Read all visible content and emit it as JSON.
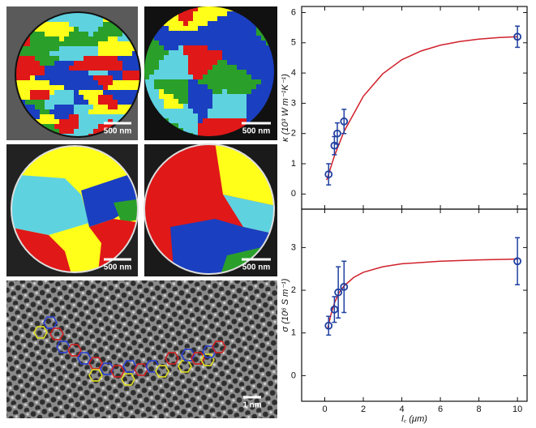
{
  "panels": [
    {
      "scale_bar": "500 nm"
    },
    {
      "scale_bar": "500 nm"
    },
    {
      "scale_bar": "500 nm"
    },
    {
      "scale_bar": "500 nm"
    },
    {
      "scale_bar": "1 nm"
    }
  ],
  "chart_data": [
    {
      "type": "scatter",
      "ylabel": "κ (10³ W m⁻¹K⁻¹)",
      "xlim": [
        -1.2,
        10.5
      ],
      "xticks": [
        0,
        2,
        4,
        6,
        8,
        10
      ],
      "ylim": [
        -0.5,
        6.2
      ],
      "yticks": [
        0,
        1,
        2,
        3,
        4,
        5,
        6
      ],
      "points": {
        "color": "#1f3fa0",
        "x": [
          0.2,
          0.5,
          0.65,
          1.0,
          10
        ],
        "values": [
          0.65,
          1.6,
          2.0,
          2.4,
          5.2
        ],
        "errors": [
          0.35,
          0.3,
          0.35,
          0.4,
          0.35
        ]
      },
      "fit": {
        "color": "#d0202a",
        "x": [
          0.1,
          0.5,
          1,
          2,
          3,
          4,
          5,
          6,
          7,
          8,
          9,
          10
        ],
        "values": [
          0.46,
          1.26,
          2.07,
          3.23,
          3.97,
          4.44,
          4.73,
          4.92,
          5.04,
          5.12,
          5.17,
          5.2
        ]
      }
    },
    {
      "type": "scatter",
      "ylabel": "σ (10⁶ S m⁻¹)",
      "xlabel": "l꜀ (μm)",
      "xlim": [
        -1.2,
        10.5
      ],
      "xticks": [
        0,
        2,
        4,
        6,
        8,
        10
      ],
      "ylim": [
        -0.6,
        3.9
      ],
      "yticks": [
        0,
        1,
        2,
        3
      ],
      "points": {
        "color": "#1f3fa0",
        "x": [
          0.2,
          0.5,
          0.7,
          1.0,
          10
        ],
        "values": [
          1.17,
          1.55,
          1.95,
          2.08,
          2.68
        ],
        "errors": [
          0.22,
          0.3,
          0.6,
          0.6,
          0.55
        ]
      },
      "fit": {
        "color": "#d0202a",
        "x": [
          0.15,
          0.3,
          0.5,
          0.75,
          1,
          1.5,
          2,
          3,
          4,
          6,
          8,
          10
        ],
        "values": [
          1.1,
          1.4,
          1.7,
          1.95,
          2.1,
          2.3,
          2.42,
          2.55,
          2.62,
          2.68,
          2.71,
          2.73
        ]
      }
    }
  ]
}
